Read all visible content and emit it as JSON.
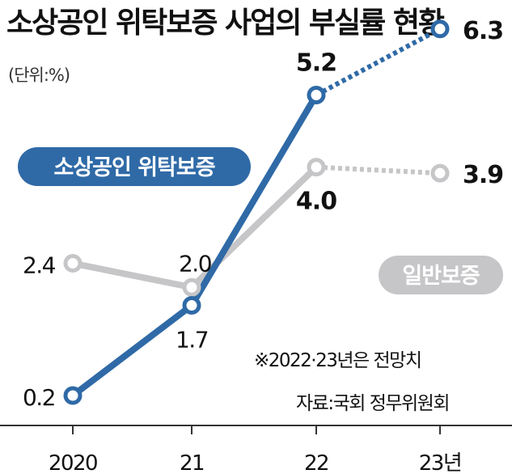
{
  "title": "소상공인 위탁보증 사업의 부실률 현황",
  "unit_label": "(단위:%)",
  "colors": {
    "primary": "#2f6aa7",
    "secondary": "#c6c6c8",
    "axis": "#333333"
  },
  "notes": {
    "forecast": "※2022·23년은 전망치",
    "source": "자료:국회 정무위원회"
  },
  "chart_data": {
    "type": "line",
    "x": [
      "2020",
      "21",
      "22",
      "23년"
    ],
    "series": [
      {
        "name": "소상공인 위탁보증",
        "values": [
          0.2,
          1.7,
          5.2,
          6.3
        ],
        "labels": [
          "0.2",
          "1.7",
          "5.2",
          "6.3"
        ],
        "color": "#2f6aa7",
        "dotted_from_index": 2
      },
      {
        "name": "일반보증",
        "values": [
          2.4,
          2.0,
          4.0,
          3.9
        ],
        "labels": [
          "2.4",
          "2.0",
          "4.0",
          "3.9"
        ],
        "color": "#c6c6c8",
        "dotted_from_index": 2
      }
    ],
    "ylim": [
      0,
      7
    ],
    "grid": false,
    "legend": "inline labels on series"
  }
}
